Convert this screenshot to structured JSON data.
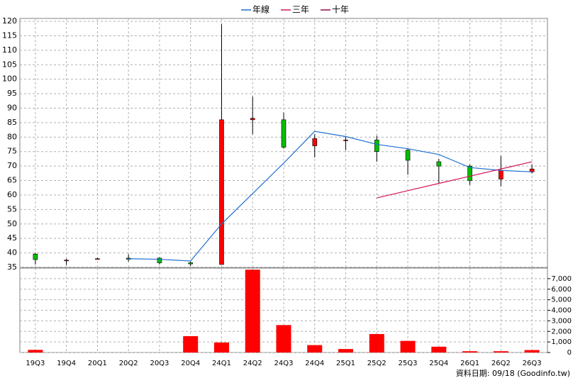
{
  "chart_data": [
    {
      "type": "candlestick",
      "ylim": [
        35,
        121
      ],
      "yticks": [
        35,
        40,
        45,
        50,
        55,
        60,
        65,
        70,
        75,
        80,
        85,
        90,
        95,
        100,
        105,
        110,
        115,
        120
      ],
      "grid": true,
      "legend": "top",
      "colors": {
        "up": "#ff0000",
        "down": "#00c000"
      },
      "open": [
        39.6,
        37.5,
        38,
        38.2,
        38.2,
        36.6,
        36,
        86,
        86,
        77,
        79,
        79,
        75.5,
        71.5,
        70,
        65.5,
        68
      ],
      "high": [
        40,
        38,
        38.3,
        39.5,
        38.5,
        37,
        119,
        94,
        88.5,
        81,
        80,
        80.5,
        76,
        72.5,
        70.5,
        73.5,
        70.5
      ],
      "low": [
        36,
        35.8,
        37.8,
        37,
        36,
        35.5,
        36,
        81,
        76,
        73,
        75.5,
        71.5,
        67,
        64,
        63.5,
        63,
        67.5
      ],
      "close": [
        37.7,
        37.5,
        38,
        37.8,
        36.6,
        36.2,
        86,
        86.5,
        76.5,
        79.5,
        79,
        75,
        72,
        70,
        65,
        68.5,
        69
      ],
      "series": [
        {
          "name": "年線",
          "color": "#1f6fd1",
          "values": [
            null,
            null,
            null,
            38,
            37.8,
            37.2,
            50,
            60.5,
            71,
            82,
            80.2,
            77.5,
            76,
            74,
            69.5,
            68.5,
            68
          ]
        },
        {
          "name": "三年",
          "color": "#d4145a",
          "values": [
            null,
            null,
            null,
            null,
            null,
            null,
            null,
            null,
            null,
            null,
            null,
            59,
            61.5,
            64,
            66.5,
            69,
            71.5
          ]
        },
        {
          "name": "十年",
          "color": "#8b0a50",
          "values": [
            null,
            null,
            null,
            null,
            null,
            null,
            null,
            null,
            null,
            null,
            null,
            null,
            null,
            null,
            null,
            null,
            null
          ]
        }
      ]
    },
    {
      "type": "bar",
      "categories": [
        "19Q3",
        "19Q4",
        "20Q1",
        "20Q2",
        "20Q3",
        "20Q4",
        "24Q1",
        "24Q2",
        "24Q3",
        "24Q4",
        "25Q1",
        "25Q2",
        "25Q3",
        "25Q4",
        "26Q1",
        "26Q2",
        "26Q3"
      ],
      "values": [
        250,
        0,
        0,
        0,
        0,
        1550,
        950,
        7850,
        2600,
        700,
        330,
        1750,
        1100,
        550,
        120,
        120,
        230
      ],
      "color": "#ff0000",
      "ylim": [
        0,
        8000
      ],
      "yticks": [
        0,
        {
          "value": 1000,
          "label": "1,000"
        },
        {
          "value": 2000,
          "label": "2,000"
        },
        {
          "value": 3000,
          "label": "3,000"
        },
        {
          "value": 4000,
          "label": "4,000"
        },
        {
          "value": 5000,
          "label": "5,000"
        },
        {
          "value": 6000,
          "label": "6,000"
        },
        {
          "value": 7000,
          "label": "7,000"
        }
      ],
      "grid": true,
      "note": "資料日期: 09/18  (Goodinfo.tw)"
    }
  ]
}
